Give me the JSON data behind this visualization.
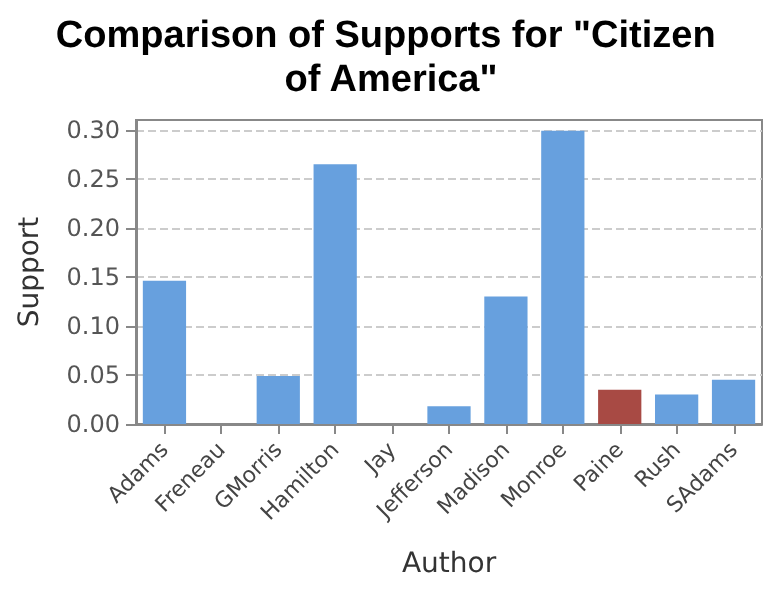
{
  "chart_data": {
    "type": "bar",
    "title": "Comparison of Supports for \"Citizen of America\"",
    "xlabel": "Author",
    "ylabel": "Support",
    "categories": [
      "Adams",
      "Freneau",
      "GMorris",
      "Hamilton",
      "Jay",
      "Jefferson",
      "Madison",
      "Monroe",
      "Paine",
      "Rush",
      "SAdams"
    ],
    "values": [
      0.146,
      0,
      0.049,
      0.265,
      0,
      0.018,
      0.13,
      0.299,
      0.035,
      0.03,
      0.045
    ],
    "colors": [
      "#67a0de",
      "#67a0de",
      "#67a0de",
      "#67a0de",
      "#67a0de",
      "#67a0de",
      "#67a0de",
      "#67a0de",
      "#a84a44",
      "#67a0de",
      "#67a0de"
    ],
    "ylim": [
      0,
      0.31
    ],
    "yticks": [
      {
        "value": 0,
        "label": "0.00"
      },
      {
        "value": 0.05,
        "label": "0.05"
      },
      {
        "value": 0.1,
        "label": "0.10"
      },
      {
        "value": 0.15,
        "label": "0.15"
      },
      {
        "value": 0.2,
        "label": "0.20"
      },
      {
        "value": 0.25,
        "label": "0.25"
      },
      {
        "value": 0.3,
        "label": "0.30"
      }
    ],
    "grid": "y"
  }
}
